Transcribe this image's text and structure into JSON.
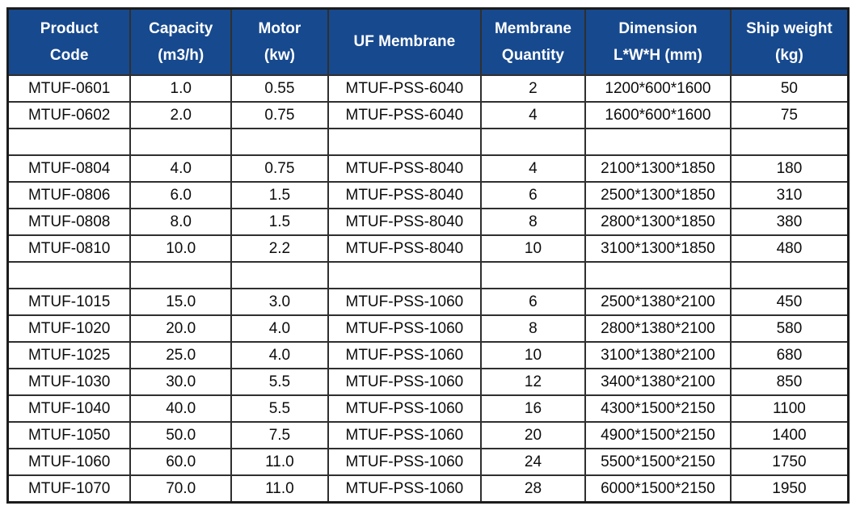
{
  "colors": {
    "header_background": "#17498e",
    "header_text": "#ffffff",
    "body_text": "#0c0c0c",
    "grid_line": "#2f2f2f",
    "outer_border": "#1c1c1c",
    "row_background": "#ffffff"
  },
  "table": {
    "columns": [
      {
        "id": "product-code",
        "lines": [
          "Product",
          "Code"
        ]
      },
      {
        "id": "capacity",
        "lines": [
          "Capacity",
          "(m3/h)"
        ]
      },
      {
        "id": "motor",
        "lines": [
          "Motor",
          "(kw)"
        ]
      },
      {
        "id": "uf-membrane",
        "lines": [
          "UF Membrane"
        ]
      },
      {
        "id": "membrane-quantity",
        "lines": [
          "Membrane",
          "Quantity"
        ]
      },
      {
        "id": "dimension",
        "lines": [
          "Dimension",
          "L*W*H (mm)"
        ]
      },
      {
        "id": "ship-weight",
        "lines": [
          "Ship weight",
          "(kg)"
        ]
      }
    ],
    "rows": [
      [
        "MTUF-0601",
        "1.0",
        "0.55",
        "MTUF-PSS-6040",
        "2",
        "1200*600*1600",
        "50"
      ],
      [
        "MTUF-0602",
        "2.0",
        "0.75",
        "MTUF-PSS-6040",
        "4",
        "1600*600*1600",
        "75"
      ],
      [
        "",
        "",
        "",
        "",
        "",
        "",
        ""
      ],
      [
        "MTUF-0804",
        "4.0",
        "0.75",
        "MTUF-PSS-8040",
        "4",
        "2100*1300*1850",
        "180"
      ],
      [
        "MTUF-0806",
        "6.0",
        "1.5",
        "MTUF-PSS-8040",
        "6",
        "2500*1300*1850",
        "310"
      ],
      [
        "MTUF-0808",
        "8.0",
        "1.5",
        "MTUF-PSS-8040",
        "8",
        "2800*1300*1850",
        "380"
      ],
      [
        "MTUF-0810",
        "10.0",
        "2.2",
        "MTUF-PSS-8040",
        "10",
        "3100*1300*1850",
        "480"
      ],
      [
        "",
        "",
        "",
        "",
        "",
        "",
        ""
      ],
      [
        "MTUF-1015",
        "15.0",
        "3.0",
        "MTUF-PSS-1060",
        "6",
        "2500*1380*2100",
        "450"
      ],
      [
        "MTUF-1020",
        "20.0",
        "4.0",
        "MTUF-PSS-1060",
        "8",
        "2800*1380*2100",
        "580"
      ],
      [
        "MTUF-1025",
        "25.0",
        "4.0",
        "MTUF-PSS-1060",
        "10",
        "3100*1380*2100",
        "680"
      ],
      [
        "MTUF-1030",
        "30.0",
        "5.5",
        "MTUF-PSS-1060",
        "12",
        "3400*1380*2100",
        "850"
      ],
      [
        "MTUF-1040",
        "40.0",
        "5.5",
        "MTUF-PSS-1060",
        "16",
        "4300*1500*2150",
        "1100"
      ],
      [
        "MTUF-1050",
        "50.0",
        "7.5",
        "MTUF-PSS-1060",
        "20",
        "4900*1500*2150",
        "1400"
      ],
      [
        "MTUF-1060",
        "60.0",
        "11.0",
        "MTUF-PSS-1060",
        "24",
        "5500*1500*2150",
        "1750"
      ],
      [
        "MTUF-1070",
        "70.0",
        "11.0",
        "MTUF-PSS-1060",
        "28",
        "6000*1500*2150",
        "1950"
      ]
    ]
  },
  "chart_data": {
    "type": "table",
    "title": "UF membrane system product specifications",
    "columns": [
      "Product Code",
      "Capacity (m3/h)",
      "Motor (kw)",
      "UF Membrane",
      "Membrane Quantity",
      "Dimension L*W*H (mm)",
      "Ship weight (kg)"
    ],
    "rows": [
      [
        "MTUF-0601",
        1.0,
        0.55,
        "MTUF-PSS-6040",
        2,
        "1200*600*1600",
        50
      ],
      [
        "MTUF-0602",
        2.0,
        0.75,
        "MTUF-PSS-6040",
        4,
        "1600*600*1600",
        75
      ],
      [
        "MTUF-0804",
        4.0,
        0.75,
        "MTUF-PSS-8040",
        4,
        "2100*1300*1850",
        180
      ],
      [
        "MTUF-0806",
        6.0,
        1.5,
        "MTUF-PSS-8040",
        6,
        "2500*1300*1850",
        310
      ],
      [
        "MTUF-0808",
        8.0,
        1.5,
        "MTUF-PSS-8040",
        8,
        "2800*1300*1850",
        380
      ],
      [
        "MTUF-0810",
        10.0,
        2.2,
        "MTUF-PSS-8040",
        10,
        "3100*1300*1850",
        480
      ],
      [
        "MTUF-1015",
        15.0,
        3.0,
        "MTUF-PSS-1060",
        6,
        "2500*1380*2100",
        450
      ],
      [
        "MTUF-1020",
        20.0,
        4.0,
        "MTUF-PSS-1060",
        8,
        "2800*1380*2100",
        580
      ],
      [
        "MTUF-1025",
        25.0,
        4.0,
        "MTUF-PSS-1060",
        10,
        "3100*1380*2100",
        680
      ],
      [
        "MTUF-1030",
        30.0,
        5.5,
        "MTUF-PSS-1060",
        12,
        "3400*1380*2100",
        850
      ],
      [
        "MTUF-1040",
        40.0,
        5.5,
        "MTUF-PSS-1060",
        16,
        "4300*1500*2150",
        1100
      ],
      [
        "MTUF-1050",
        50.0,
        7.5,
        "MTUF-PSS-1060",
        20,
        "4900*1500*2150",
        1400
      ],
      [
        "MTUF-1060",
        60.0,
        11.0,
        "MTUF-PSS-1060",
        24,
        "5500*1500*2150",
        1750
      ],
      [
        "MTUF-1070",
        70.0,
        11.0,
        "MTUF-PSS-1060",
        28,
        "6000*1500*2150",
        1950
      ]
    ],
    "layout": {
      "header_style": "dark navy background, white bold text, two-line headers",
      "separator_rows_after": [
        "MTUF-0602",
        "MTUF-0810"
      ],
      "grid": true
    }
  }
}
